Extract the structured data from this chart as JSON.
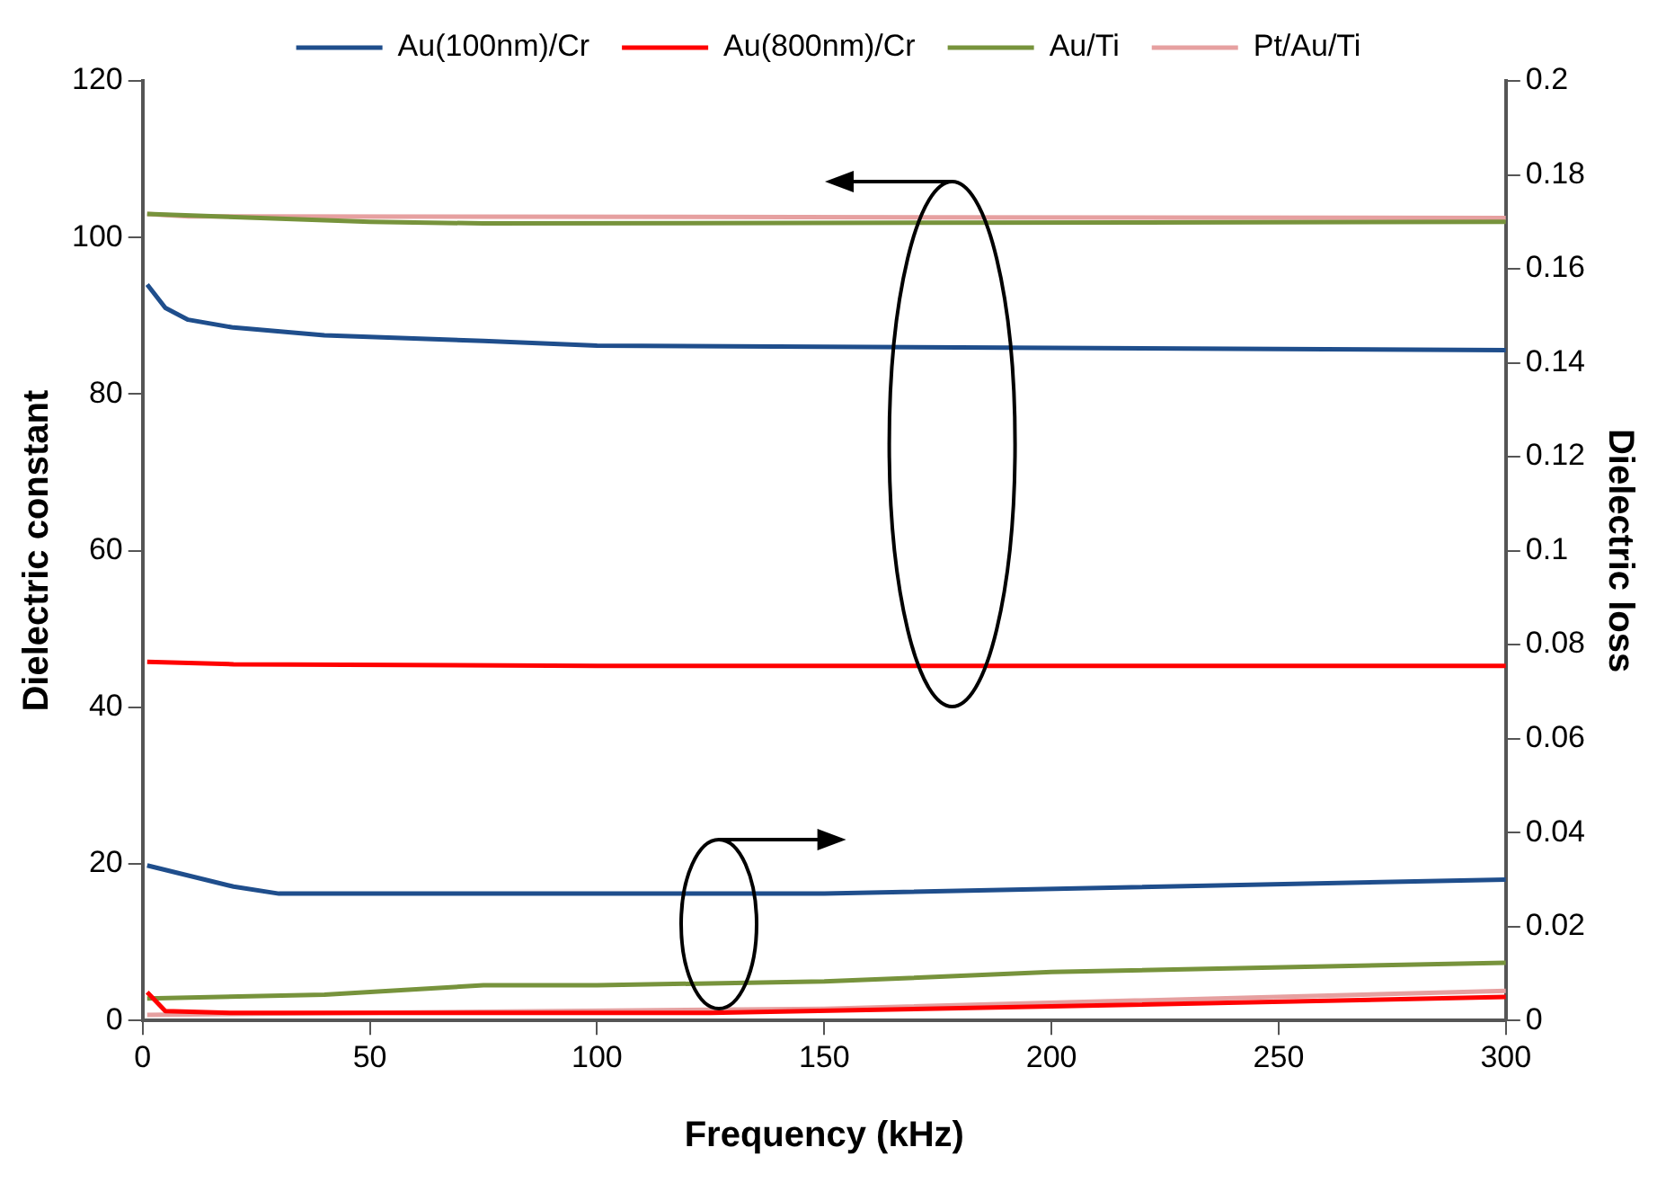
{
  "chart_data": {
    "type": "line",
    "xlabel": "Frequency (kHz)",
    "ylabel": "Dielectric constant",
    "y2label": "Dielectric loss",
    "xlim": [
      0,
      300
    ],
    "xticks": [
      0,
      50,
      100,
      150,
      200,
      250,
      300
    ],
    "ylim": [
      0,
      120
    ],
    "yticks": [
      0,
      20,
      40,
      60,
      80,
      100,
      120
    ],
    "y2lim": [
      0,
      0.2
    ],
    "y2ticks": [
      0,
      0.02,
      0.04,
      0.06,
      0.08,
      0.1,
      0.12,
      0.14,
      0.16,
      0.18,
      0.2
    ],
    "legend": "top",
    "grid": false,
    "marker": "none",
    "line_style": "solid",
    "series": [
      {
        "name": "Au(100nm)/Cr",
        "color": "#1f4e8c",
        "x": [
          1,
          5,
          10,
          20,
          40,
          75,
          100,
          200,
          300
        ],
        "values": [
          94,
          91,
          89.5,
          88.5,
          87.5,
          86.8,
          86.2,
          85.9,
          85.6
        ]
      },
      {
        "name": "Au(800nm)/Cr",
        "color": "#ff0000",
        "x": [
          1,
          20,
          100,
          300
        ],
        "values": [
          45.8,
          45.5,
          45.3,
          45.3
        ]
      },
      {
        "name": "Au/Ti",
        "color": "#77933c",
        "x": [
          1,
          50,
          75,
          300
        ],
        "values": [
          103,
          102,
          101.8,
          102
        ]
      },
      {
        "name": "Pt/Au/Ti",
        "color": "#e6a0a0",
        "x": [
          1,
          10,
          300
        ],
        "values": [
          103,
          102.7,
          102.5
        ]
      },
      {
        "color": "#1f4e8c",
        "axis": "y2",
        "x": [
          1,
          20,
          30,
          150,
          300
        ],
        "values": [
          0.033,
          0.0285,
          0.027,
          0.027,
          0.03
        ]
      },
      {
        "color": "#ff0000",
        "axis": "y2",
        "x": [
          1,
          5,
          20,
          125,
          200,
          300
        ],
        "values": [
          0.006,
          0.002,
          0.0016,
          0.0016,
          0.003,
          0.005
        ]
      },
      {
        "color": "#77933c",
        "axis": "y2",
        "x": [
          1,
          40,
          75,
          100,
          150,
          200,
          300
        ],
        "values": [
          0.0047,
          0.0055,
          0.0075,
          0.0075,
          0.0083,
          0.0103,
          0.0123
        ]
      },
      {
        "color": "#e6a0a0",
        "axis": "y2",
        "x": [
          1,
          150,
          300
        ],
        "values": [
          0.0012,
          0.0025,
          0.0063
        ]
      }
    ]
  }
}
